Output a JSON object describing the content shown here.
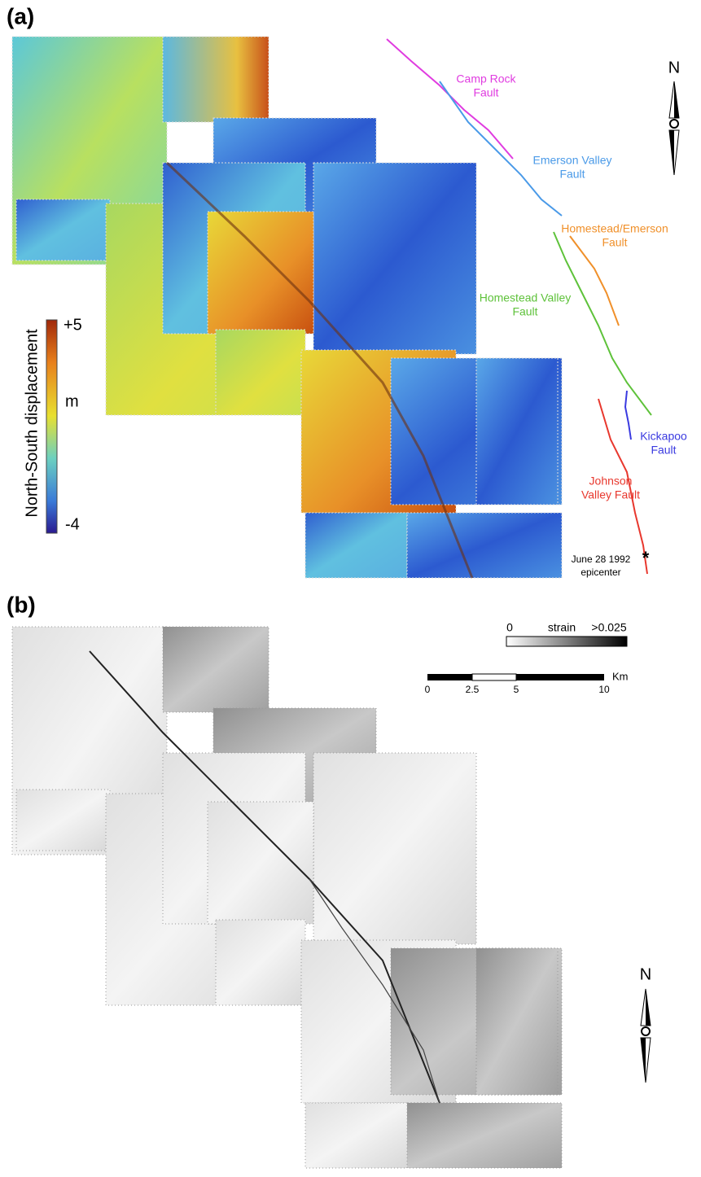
{
  "panel_a": {
    "label": "(a)",
    "colorbar": {
      "title": "North-South displacement",
      "max": "+5",
      "unit": "m",
      "min": "-4"
    },
    "faults": [
      {
        "lines": [
          "Camp Rock",
          "Fault"
        ],
        "color": "#e03ce0"
      },
      {
        "lines": [
          "Emerson Valley",
          "Fault"
        ],
        "color": "#4a9ae8"
      },
      {
        "lines": [
          "Homestead/Emerson",
          "Fault"
        ],
        "color": "#f0902a"
      },
      {
        "lines": [
          "Homestead Valley",
          "Fault"
        ],
        "color": "#5ec23a"
      },
      {
        "lines": [
          "Kickapoo",
          "Fault"
        ],
        "color": "#3a3ae0"
      },
      {
        "lines": [
          "Johnson",
          "Valley Fault"
        ],
        "color": "#e8382e"
      }
    ],
    "epicenter": [
      "June 28 1992",
      "epicenter"
    ],
    "north": "N"
  },
  "panel_b": {
    "label": "(b)",
    "strain_legend": {
      "min": "0",
      "title": "strain",
      "max": ">0.025"
    },
    "scale_bar": {
      "ticks": [
        "0",
        "2.5",
        "5",
        "10"
      ],
      "unit": "Km"
    },
    "north": "N"
  }
}
